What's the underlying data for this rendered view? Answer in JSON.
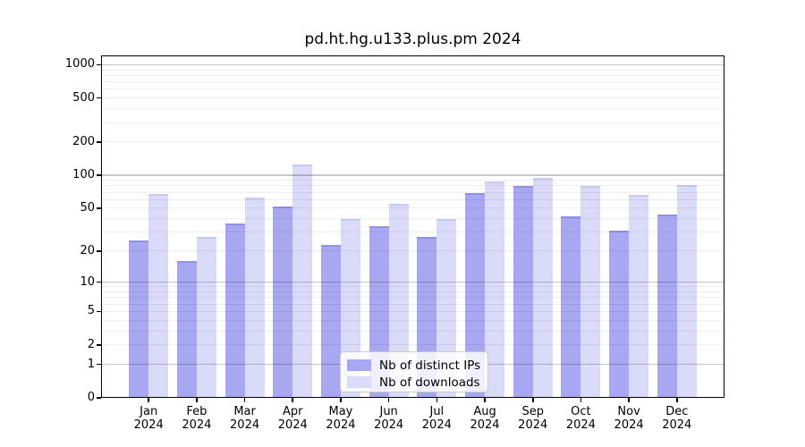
{
  "title": "pd.ht.hg.u133.plus.pm 2024",
  "chart_data": {
    "type": "bar",
    "title": "pd.ht.hg.u133.plus.pm 2024",
    "categories": [
      {
        "label": "Jan",
        "sublabel": "2024"
      },
      {
        "label": "Feb",
        "sublabel": "2024"
      },
      {
        "label": "Mar",
        "sublabel": "2024"
      },
      {
        "label": "Apr",
        "sublabel": "2024"
      },
      {
        "label": "May",
        "sublabel": "2024"
      },
      {
        "label": "Jun",
        "sublabel": "2024"
      },
      {
        "label": "Jul",
        "sublabel": "2024"
      },
      {
        "label": "Aug",
        "sublabel": "2024"
      },
      {
        "label": "Sep",
        "sublabel": "2024"
      },
      {
        "label": "Oct",
        "sublabel": "2024"
      },
      {
        "label": "Nov",
        "sublabel": "2024"
      },
      {
        "label": "Dec",
        "sublabel": "2024"
      }
    ],
    "series": [
      {
        "name": "Nb of distinct IPs",
        "color": "#a7a7f2",
        "edge_color": "#9292e4",
        "values": [
          25,
          16,
          36,
          52,
          23,
          34,
          27,
          69,
          80,
          42,
          31,
          44
        ]
      },
      {
        "name": "Nb of downloads",
        "color": "#dadaf9",
        "edge_color": "#c8c8f4",
        "values": [
          67,
          27,
          63,
          125,
          40,
          55,
          40,
          87,
          95,
          80,
          66,
          81
        ]
      }
    ],
    "y_axis": {
      "scale": "log1p",
      "ticks": [
        0,
        1,
        2,
        5,
        10,
        20,
        50,
        100,
        200,
        500,
        1000
      ],
      "tick_labels": [
        "0",
        "1",
        "2",
        "5",
        "10",
        "20",
        "50",
        "100",
        "200",
        "500",
        "1000"
      ],
      "range": [
        0,
        1200
      ]
    },
    "xlabel": "",
    "ylabel": "",
    "grid": "horizontal; dark majors at powers of 10, light minors at 2-9 multiples; drawn over bars",
    "legend_position": "lower center"
  },
  "colors": {
    "background": "#ffffff",
    "axis": "#000000",
    "grid_major": "rgba(0,0,0,0.22)",
    "grid_minor": "rgba(0,0,0,0.065)",
    "legend_border": "#c9c9c9",
    "text": "#000000"
  }
}
